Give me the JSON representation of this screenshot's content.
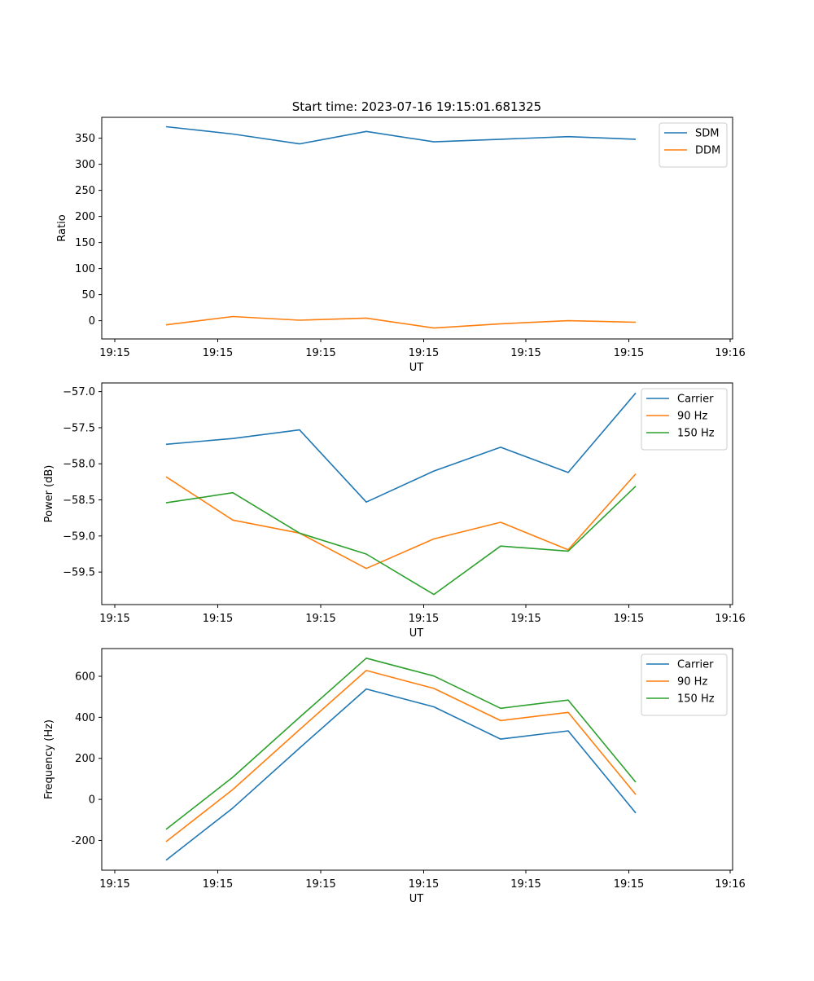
{
  "figure_title": "Start time: 2023-07-16 19:15:01.681325",
  "chart_data": [
    {
      "type": "line",
      "xlabel": "UT",
      "ylabel": "Ratio",
      "x_ticks": [
        "19:15",
        "19:15",
        "19:15",
        "19:15",
        "19:15",
        "19:15",
        "19:16"
      ],
      "ylim": [
        -35,
        390
      ],
      "y_ticks": [
        0,
        50,
        100,
        150,
        200,
        250,
        300,
        350
      ],
      "legend_position": "top-right",
      "series": [
        {
          "name": "SDM",
          "color": "#1f77b4",
          "values": [
            372,
            358,
            339,
            363,
            343,
            348,
            353,
            348
          ]
        },
        {
          "name": "DDM",
          "color": "#ff7f0e",
          "values": [
            -8,
            8,
            1,
            5,
            -14,
            -6,
            0,
            -3
          ]
        }
      ]
    },
    {
      "type": "line",
      "xlabel": "UT",
      "ylabel": "Power (dB)",
      "x_ticks": [
        "19:15",
        "19:15",
        "19:15",
        "19:15",
        "19:15",
        "19:15",
        "19:16"
      ],
      "ylim": [
        -59.95,
        -56.88
      ],
      "y_ticks": [
        "−57.0",
        "−57.5",
        "−58.0",
        "−58.5",
        "−59.0",
        "−59.5"
      ],
      "y_tick_values": [
        -57.0,
        -57.5,
        -58.0,
        -58.5,
        -59.0,
        -59.5
      ],
      "legend_position": "top-right",
      "series": [
        {
          "name": "Carrier",
          "color": "#1f77b4",
          "values": [
            -57.73,
            -57.65,
            -57.53,
            -58.53,
            -58.1,
            -57.77,
            -58.12,
            -57.02
          ]
        },
        {
          "name": "90 Hz",
          "color": "#ff7f0e",
          "values": [
            -58.18,
            -58.78,
            -58.96,
            -59.45,
            -59.04,
            -58.81,
            -59.19,
            -58.14
          ]
        },
        {
          "name": "150 Hz",
          "color": "#2ca02c",
          "values": [
            -58.54,
            -58.4,
            -58.96,
            -59.25,
            -59.81,
            -59.14,
            -59.21,
            -58.31
          ]
        }
      ]
    },
    {
      "type": "line",
      "xlabel": "UT",
      "ylabel": "Frequency (Hz)",
      "x_ticks": [
        "19:15",
        "19:15",
        "19:15",
        "19:15",
        "19:15",
        "19:15",
        "19:16"
      ],
      "ylim": [
        -345,
        735
      ],
      "y_ticks": [
        -200,
        0,
        200,
        400,
        600
      ],
      "legend_position": "top-right",
      "series": [
        {
          "name": "Carrier",
          "color": "#1f77b4",
          "values": [
            -296,
            -42,
            250,
            538,
            451,
            294,
            334,
            -66
          ]
        },
        {
          "name": "90 Hz",
          "color": "#ff7f0e",
          "values": [
            -206,
            48,
            340,
            628,
            541,
            384,
            424,
            24
          ]
        },
        {
          "name": "150 Hz",
          "color": "#2ca02c",
          "values": [
            -146,
            108,
            400,
            688,
            601,
            444,
            484,
            84
          ]
        }
      ]
    }
  ]
}
